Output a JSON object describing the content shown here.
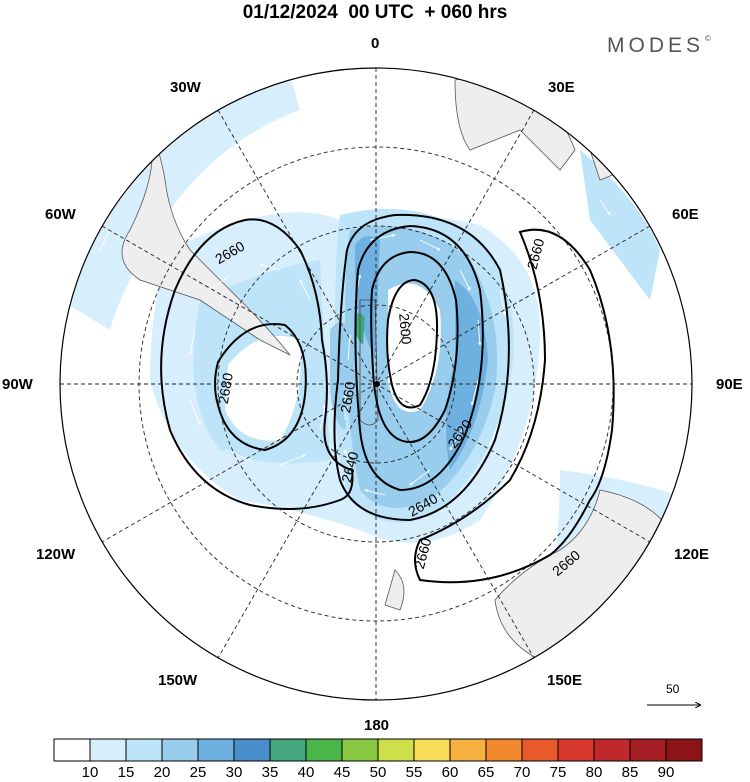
{
  "header": {
    "title": "01/12/2024  00 UTC  + 060 hrs",
    "logo": "MODES"
  },
  "map": {
    "projection": "south polar stereographic",
    "longitude_labels": {
      "top": "0",
      "bottom": "180",
      "left": "90W",
      "right": "90E",
      "l30": "30W",
      "r30": "30E",
      "l60": "60W",
      "r60": "60E",
      "l120": "120W",
      "r120": "120E",
      "l150": "150W",
      "r150": "150E"
    },
    "contours": [
      {
        "label": "2600",
        "value": 2600
      },
      {
        "label": "2620",
        "value": 2620
      },
      {
        "label": "2640",
        "value": 2640
      },
      {
        "label": "2660",
        "value": 2660
      },
      {
        "label": "2680",
        "value": 2680
      }
    ],
    "vector_reference": "50"
  },
  "colorbar": {
    "levels": [
      "10",
      "15",
      "20",
      "25",
      "30",
      "35",
      "40",
      "45",
      "50",
      "55",
      "60",
      "65",
      "70",
      "75",
      "80",
      "85",
      "90"
    ],
    "colors": [
      "#ffffff",
      "#d7effc",
      "#bde4f8",
      "#98cdee",
      "#6eb0e0",
      "#4a8fcc",
      "#43a67e",
      "#4ab64a",
      "#88c840",
      "#cde04a",
      "#f8dc58",
      "#f5b040",
      "#f08830",
      "#e85a2a",
      "#d93830",
      "#c0282c",
      "#a51e24",
      "#8c1418"
    ]
  }
}
